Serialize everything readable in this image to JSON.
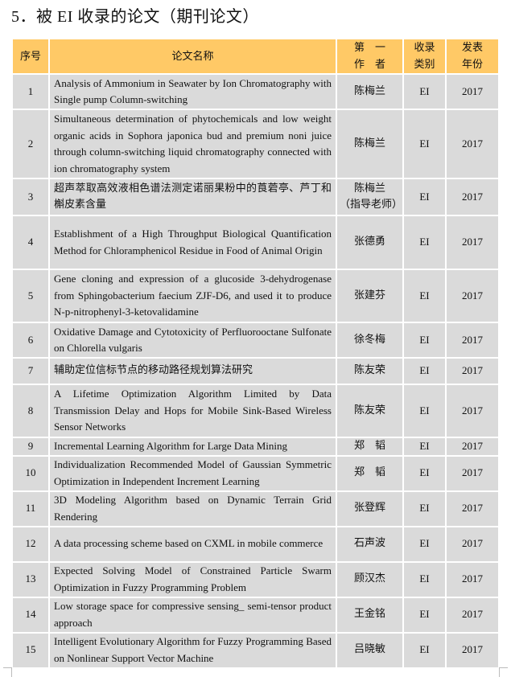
{
  "title": "5．被 EI 收录的论文（期刊论文）",
  "header": {
    "no": "序号",
    "name": "论文名称",
    "author_1": "第　一",
    "author_2": "作　者",
    "type_1": "收录",
    "type_2": "类别",
    "year_1": "发表",
    "year_2": "年份"
  },
  "colors": {
    "header_bg": "#ffc966",
    "row_bg": "#dadada"
  },
  "rows": [
    {
      "no": "1",
      "name": "Analysis of Ammonium in Seawater by Ion Chromatography with Single pump Column-switching",
      "author": "陈梅兰",
      "type": "EI",
      "year": "2017"
    },
    {
      "no": "2",
      "name": "Simultaneous determination of phytochemicals and low weight organic acids in Sophora japonica bud and premium noni juice through column-switching liquid chromatography connected with ion chromatography system",
      "author": "陈梅兰",
      "type": "EI",
      "year": "2017"
    },
    {
      "no": "3",
      "name": "超声萃取高效液相色谱法测定诺丽果粉中的莨菪亭、芦丁和槲皮素含量",
      "author": "陈梅兰",
      "author_note": "（指导老师）",
      "type": "EI",
      "year": "2017"
    },
    {
      "no": "4",
      "name": "Establishment of a High Throughput Biological Quantification Method for Chloramphenicol Residue in Food of Animal Origin",
      "author": "张德勇",
      "type": "EI",
      "year": "2017"
    },
    {
      "no": "5",
      "name": "Gene cloning and expression of a glucoside 3-dehydrogenase from Sphingobacterium faecium ZJF-D6, and used it to produce N-p-nitrophenyl-3-ketovalidamine",
      "author": "张建芬",
      "type": "EI",
      "year": "2017"
    },
    {
      "no": "6",
      "name": "Oxidative Damage and Cytotoxicity of Perfluorooctane Sulfonate on Chlorella vulgaris",
      "author": "徐冬梅",
      "type": "EI",
      "year": "2017"
    },
    {
      "no": "7",
      "name": "辅助定位信标节点的移动路径规划算法研究",
      "author": "陈友荣",
      "type": "EI",
      "year": "2017"
    },
    {
      "no": "8",
      "name": "A Lifetime Optimization Algorithm Limited by Data Transmission Delay and Hops for Mobile Sink-Based Wireless Sensor Networks",
      "author": "陈友荣",
      "type": "EI",
      "year": "2017"
    },
    {
      "no": "9",
      "name": "Incremental Learning Algorithm for Large Data Mining",
      "author": "郑　韬",
      "type": "EI",
      "year": "2017"
    },
    {
      "no": "10",
      "name": "Individualization Recommended Model of Gaussian Symmetric Optimization in Independent Increment Learning",
      "author": "郑　韬",
      "type": "EI",
      "year": "2017"
    },
    {
      "no": "11",
      "name": "3D Modeling Algorithm based on Dynamic Terrain Grid Rendering",
      "author": "张登辉",
      "type": "EI",
      "year": "2017"
    },
    {
      "no": "12",
      "name": "A data processing scheme based on CXML in mobile commerce",
      "author": "石声波",
      "type": "EI",
      "year": "2017"
    },
    {
      "no": "13",
      "name": "Expected Solving Model of Constrained Particle Swarm Optimization in Fuzzy Programming Problem",
      "author": "顾汉杰",
      "type": "EI",
      "year": "2017"
    },
    {
      "no": "14",
      "name": "Low storage space for compressive sensing_ semi-tensor product approach",
      "author": "王金铭",
      "type": "EI",
      "year": "2017"
    },
    {
      "no": "15",
      "name": "Intelligent Evolutionary Algorithm for Fuzzy Programming Based on Nonlinear Support Vector Machine",
      "author": "吕晓敏",
      "type": "EI",
      "year": "2017"
    }
  ]
}
